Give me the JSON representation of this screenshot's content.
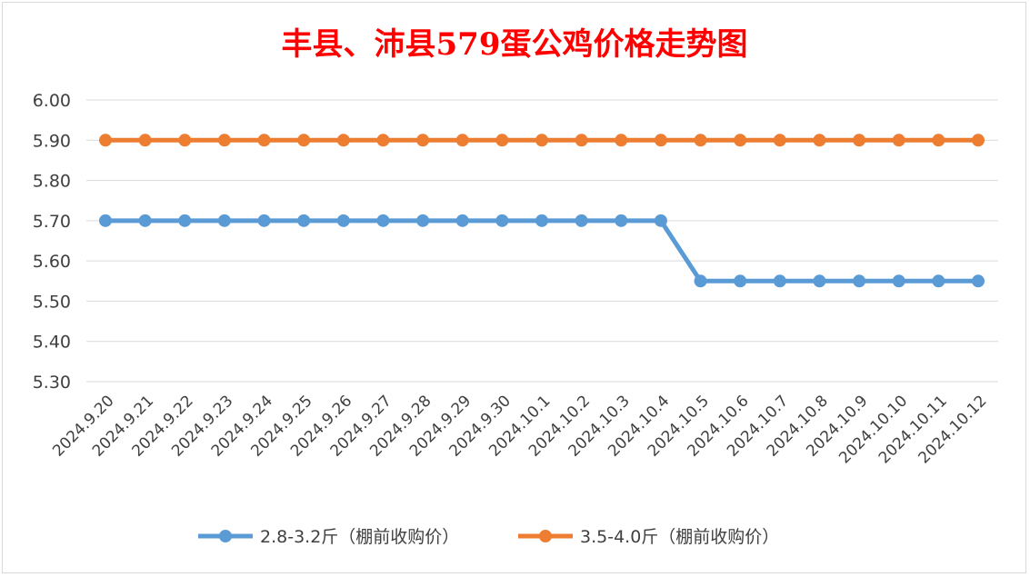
{
  "chart_data": {
    "type": "line",
    "title": "丰县、沛县579蛋公鸡价格走势图",
    "xlabel": "",
    "ylabel": "",
    "ylim": [
      5.3,
      6.0
    ],
    "yticks": [
      "6.00",
      "5.90",
      "5.80",
      "5.70",
      "5.60",
      "5.50",
      "5.40",
      "5.30"
    ],
    "grid": true,
    "legend_position": "bottom",
    "categories": [
      "2024.9.20",
      "2024.9.21",
      "2024.9.22",
      "2024.9.23",
      "2024.9.24",
      "2024.9.25",
      "2024.9.26",
      "2024.9.27",
      "2024.9.28",
      "2024.9.29",
      "2024.9.30",
      "2024.10.1",
      "2024.10.2",
      "2024.10.3",
      "2024.10.4",
      "2024.10.5",
      "2024.10.6",
      "2024.10.7",
      "2024.10.8",
      "2024.10.9",
      "2024.10.10",
      "2024.10.11",
      "2024.10.12"
    ],
    "series": [
      {
        "name": "2.8-3.2斤（棚前收购价）",
        "color": "#5b9bd5",
        "values": [
          5.7,
          5.7,
          5.7,
          5.7,
          5.7,
          5.7,
          5.7,
          5.7,
          5.7,
          5.7,
          5.7,
          5.7,
          5.7,
          5.7,
          5.7,
          5.55,
          5.55,
          5.55,
          5.55,
          5.55,
          5.55,
          5.55,
          5.55
        ]
      },
      {
        "name": "3.5-4.0斤（棚前收购价）",
        "color": "#ed7d31",
        "values": [
          5.9,
          5.9,
          5.9,
          5.9,
          5.9,
          5.9,
          5.9,
          5.9,
          5.9,
          5.9,
          5.9,
          5.9,
          5.9,
          5.9,
          5.9,
          5.9,
          5.9,
          5.9,
          5.9,
          5.9,
          5.9,
          5.9,
          5.9
        ]
      }
    ]
  }
}
